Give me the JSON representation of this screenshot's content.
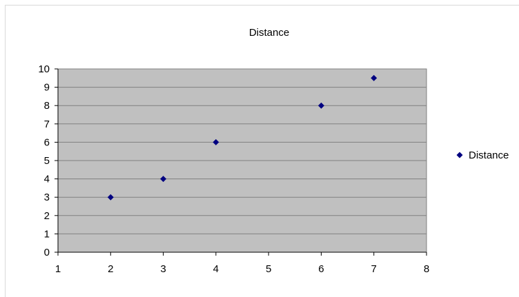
{
  "chart_data": {
    "type": "scatter",
    "title": "Distance",
    "xlabel": "",
    "ylabel": "",
    "xlim": [
      1,
      8
    ],
    "ylim": [
      0,
      10
    ],
    "x_ticks": [
      "1",
      "2",
      "3",
      "4",
      "5",
      "6",
      "7",
      "8"
    ],
    "y_ticks": [
      "0",
      "1",
      "2",
      "3",
      "4",
      "5",
      "6",
      "7",
      "8",
      "9",
      "10"
    ],
    "grid": "horizontal",
    "legend_position": "right",
    "series": [
      {
        "name": "Distance",
        "x": [
          2,
          3,
          4,
          6,
          7
        ],
        "y": [
          3,
          4,
          6,
          8,
          9.5
        ],
        "color": "#000080",
        "marker": "diamond"
      }
    ],
    "plot_background": "#c0c0c0",
    "gridline_color": "#808080"
  }
}
